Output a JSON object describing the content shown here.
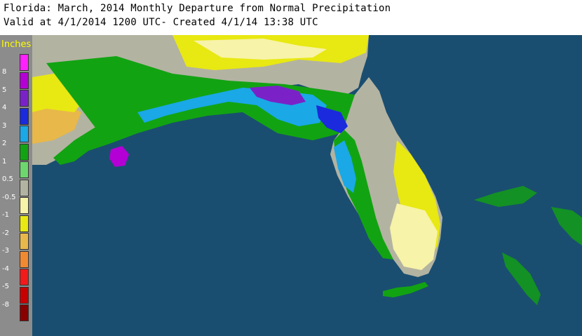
{
  "header": {
    "title": "Florida: March, 2014 Monthly Departure from Normal Precipitation",
    "subtitle": "Valid at 4/1/2014 1200 UTC- Created 4/1/14 13:38 UTC"
  },
  "legend": {
    "title": "Inches",
    "entries": [
      {
        "label": "8",
        "color": "#ff22ff"
      },
      {
        "label": "5",
        "color": "#b400d4"
      },
      {
        "label": "4",
        "color": "#7a22c8"
      },
      {
        "label": "3",
        "color": "#1a2adc"
      },
      {
        "label": "2",
        "color": "#1aa8e6"
      },
      {
        "label": "1",
        "color": "#12a312"
      },
      {
        "label": "0.5",
        "color": "#6ed66e"
      },
      {
        "label": "-0.5",
        "color": "#b3b3a2"
      },
      {
        "label": "-1",
        "color": "#f7f3a8"
      },
      {
        "label": "-2",
        "color": "#e8e812"
      },
      {
        "label": "-3",
        "color": "#e8b84a"
      },
      {
        "label": "-4",
        "color": "#f08a30"
      },
      {
        "label": "-5",
        "color": "#f21a1a"
      },
      {
        "label": "-8",
        "color": "#c80000"
      },
      {
        "label": "",
        "color": "#880000"
      }
    ]
  },
  "map": {
    "water_color": "#1a4e70",
    "land_colors": {
      "neutral": "#b3b3a2",
      "dry": "#e8e812",
      "dry_light": "#f7f3a8",
      "wet": "#12a312",
      "wet_light": "#6ed66e",
      "very_wet": "#1aa8e6",
      "extreme_wet": "#7a22c8"
    }
  }
}
